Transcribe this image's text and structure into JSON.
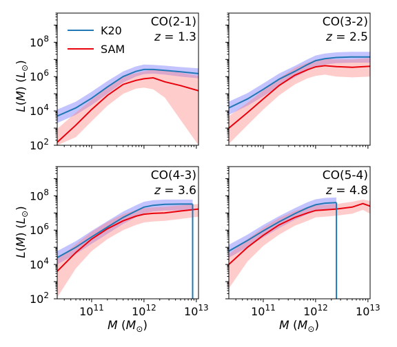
{
  "chart_data": {
    "type": "line",
    "x_scale": "log",
    "y_scale": "log",
    "xlim": [
      22000000000.0,
      11000000000000.0
    ],
    "ylim": [
      100,
      5000000000.0
    ],
    "xlabel": "M (M⊙)",
    "ylabel": "L(M) (L⊙)",
    "x_ticks": [
      {
        "value": 100000000000.0,
        "base": "10",
        "exp": "11"
      },
      {
        "value": 1000000000000.0,
        "base": "10",
        "exp": "12"
      },
      {
        "value": 10000000000000.0,
        "base": "10",
        "exp": "13"
      }
    ],
    "y_ticks": [
      {
        "value": 100,
        "base": "10",
        "exp": "2"
      },
      {
        "value": 10000,
        "base": "10",
        "exp": "4"
      },
      {
        "value": 1000000,
        "base": "10",
        "exp": "6"
      },
      {
        "value": 100000000,
        "base": "10",
        "exp": "8"
      }
    ],
    "legend": {
      "placement": "upper-left of top-left panel",
      "entries": [
        {
          "name": "K20",
          "color": "#1f77b4"
        },
        {
          "name": "SAM",
          "color": "#e8000b"
        }
      ]
    },
    "colors": {
      "k20_line": "#1f77b4",
      "k20_band": "#7b7bff",
      "sam_line": "#e8000b",
      "sam_band": "#ff8080"
    },
    "panels": [
      {
        "id": "co21",
        "line": "CO(2-1)",
        "z_label": "z",
        "z_value": "1.3",
        "series": [
          {
            "name": "K20",
            "x": [
              22000000000.0,
              50000000000.0,
              100000000000.0,
              200000000000.0,
              400000000000.0,
              700000000000.0,
              1000000000000.0,
              1500000000000.0,
              2500000000000.0,
              5000000000000.0,
              11000000000000.0
            ],
            "y": [
              5000,
              15000,
              55000,
              250000,
              1000000,
              2000000,
              2600000,
              2600000,
              2300000,
              1900000,
              1500000
            ],
            "lower": [
              2000,
              6000,
              22000,
              100000,
              450000,
              1000000,
              1400000,
              1500000,
              1300000,
              1000000,
              800000
            ],
            "upper": [
              12000,
              35000,
              130000,
              550000,
              2000000,
              3900000,
              5000000,
              4800000,
              4300000,
              3600000,
              3000000
            ]
          },
          {
            "name": "SAM",
            "x": [
              22000000000.0,
              50000000000.0,
              100000000000.0,
              200000000000.0,
              400000000000.0,
              700000000000.0,
              1000000000000.0,
              1500000000000.0,
              2500000000000.0,
              5000000000000.0,
              11000000000000.0
            ],
            "y": [
              150,
              1500,
              12000,
              80000,
              350000,
              600000,
              750000,
              850000,
              500000,
              300000,
              150000
            ],
            "lower": [
              100,
              300,
              2500,
              20000,
              100000,
              200000,
              230000,
              180000,
              60000,
              3000,
              100
            ],
            "upper": [
              900,
              8000,
              45000,
              250000,
              1000000,
              1600000,
              2000000,
              2600000,
              2200000,
              1700000,
              1100000
            ]
          }
        ]
      },
      {
        "id": "co32",
        "line": "CO(3-2)",
        "z_label": "z",
        "z_value": "2.5",
        "series": [
          {
            "name": "K20",
            "x": [
              22000000000.0,
              50000000000.0,
              100000000000.0,
              200000000000.0,
              400000000000.0,
              700000000000.0,
              1000000000000.0,
              1500000000000.0,
              2500000000000.0,
              5000000000000.0,
              11000000000000.0
            ],
            "y": [
              15000,
              50000,
              180000,
              700000,
              2000000,
              5000000,
              8500000,
              11000000,
              13000000,
              14000000,
              14000000
            ],
            "lower": [
              6000,
              20000,
              70000,
              280000,
              900000,
              2200000,
              3800000,
              5000000,
              6000000,
              6500000,
              6500000
            ],
            "upper": [
              35000,
              110000,
              400000,
              1500000,
              4200000,
              10000000,
              17000000,
              22000000,
              26000000,
              28000000,
              28000000
            ]
          },
          {
            "name": "SAM",
            "x": [
              22000000000.0,
              50000000000.0,
              100000000000.0,
              200000000000.0,
              400000000000.0,
              700000000000.0,
              1000000000000.0,
              1500000000000.0,
              2500000000000.0,
              5000000000000.0,
              11000000000000.0
            ],
            "y": [
              1000,
              8000,
              50000,
              300000,
              1200000,
              2500000,
              3700000,
              4300000,
              3800000,
              3500000,
              4000000
            ],
            "lower": [
              120,
              1500,
              12000,
              80000,
              350000,
              800000,
              1100000,
              1300000,
              1000000,
              900000,
              1000000
            ],
            "upper": [
              5000,
              30000,
              160000,
              800000,
              3200000,
              6500000,
              9500000,
              11000000,
              10000000,
              10000000,
              12000000
            ]
          }
        ]
      },
      {
        "id": "co43",
        "line": "CO(4-3)",
        "z_label": "z",
        "z_value": "3.6",
        "series": [
          {
            "name": "K20",
            "x": [
              22000000000.0,
              50000000000.0,
              100000000000.0,
              200000000000.0,
              400000000000.0,
              700000000000.0,
              1000000000000.0,
              1500000000000.0,
              2500000000000.0,
              5000000000000.0,
              8500000000000.0
            ],
            "y": [
              25000,
              100000,
              400000,
              1500000,
              5500000,
              13000000,
              22000000,
              28000000,
              32000000,
              33000000,
              33000000
            ],
            "lower": [
              10000,
              40000,
              160000,
              600000,
              2300000,
              5500000,
              9500000,
              12000000,
              14000000,
              14000000,
              14000000
            ],
            "upper": [
              60000,
              230000,
              900000,
              3300000,
              12000000,
              28000000,
              45000000,
              55000000,
              60000000,
              60000000,
              60000000
            ]
          },
          {
            "name": "SAM",
            "x": [
              22000000000.0,
              50000000000.0,
              100000000000.0,
              200000000000.0,
              400000000000.0,
              700000000000.0,
              1000000000000.0,
              1500000000000.0,
              2500000000000.0,
              5000000000000.0,
              11000000000000.0
            ],
            "y": [
              4000,
              50000,
              300000,
              1200000,
              3500000,
              6500000,
              8500000,
              9500000,
              10000000,
              13000000,
              17000000
            ],
            "lower": [
              120,
              6000,
              60000,
              300000,
              1000000,
              2000000,
              2800000,
              3200000,
              3500000,
              4500000,
              6000000
            ],
            "upper": [
              20000,
              150000,
              800000,
              3000000,
              8500000,
              15000000,
              19000000,
              21000000,
              23000000,
              28000000,
              33000000
            ]
          }
        ]
      },
      {
        "id": "co54",
        "line": "CO(5-4)",
        "z_label": "z",
        "z_value": "4.8",
        "series": [
          {
            "name": "K20",
            "x": [
              22000000000.0,
              50000000000.0,
              100000000000.0,
              200000000000.0,
              400000000000.0,
              700000000000.0,
              1000000000000.0,
              1500000000000.0,
              2500000000000.0
            ],
            "y": [
              60000,
              250000,
              900000,
              3000000,
              9000000,
              20000000,
              30000000,
              37000000,
              40000000
            ],
            "lower": [
              25000,
              100000,
              380000,
              1300000,
              4000000,
              8500000,
              13000000,
              16000000,
              18000000
            ],
            "upper": [
              140000,
              550000,
              2000000,
              6500000,
              19000000,
              42000000,
              62000000,
              75000000,
              80000000
            ]
          },
          {
            "name": "SAM",
            "x": [
              22000000000.0,
              50000000000.0,
              100000000000.0,
              200000000000.0,
              400000000000.0,
              700000000000.0,
              1000000000000.0,
              1500000000000.0,
              2500000000000.0,
              5000000000000.0,
              8000000000000.0,
              11000000000000.0
            ],
            "y": [
              10000,
              100000,
              500000,
              2000000,
              5500000,
              10000000,
              14000000,
              15000000,
              17000000,
              22000000,
              35000000,
              25000000
            ],
            "lower": [
              400,
              15000,
              120000,
              550000,
              1800000,
              3500000,
              5500000,
              6000000,
              7000000,
              9000000,
              15000000,
              9000000
            ],
            "upper": [
              40000,
              300000,
              1400000,
              5000000,
              13000000,
              22000000,
              28000000,
              30000000,
              33000000,
              45000000,
              60000000,
              50000000
            ]
          }
        ]
      }
    ]
  }
}
